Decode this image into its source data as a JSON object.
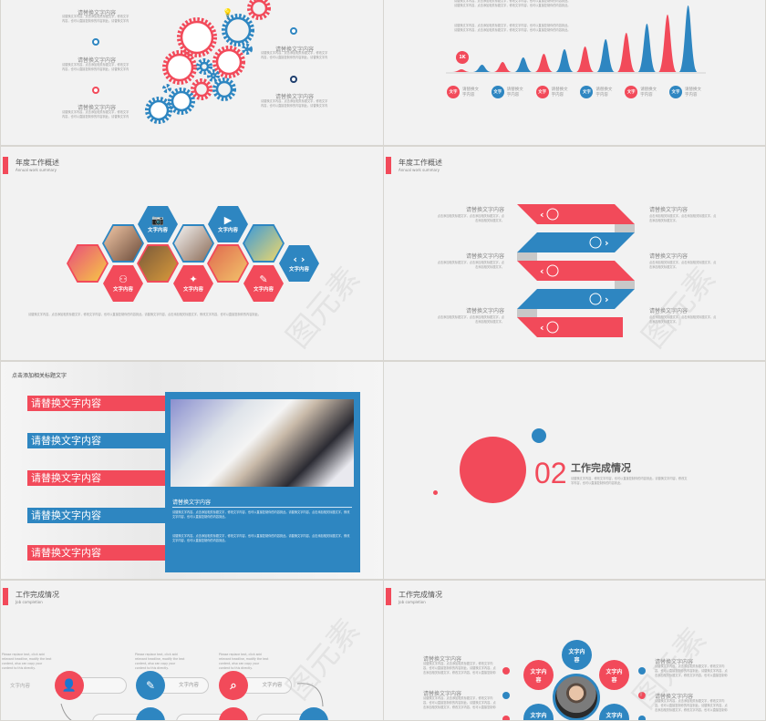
{
  "colors": {
    "red": "#f24a5a",
    "blue": "#2e86c1",
    "navy": "#1f3f6e",
    "bg": "#f2f2f2"
  },
  "common": {
    "replace_text": "请替换文字内容",
    "body_text": "请替换文字内容，点击添加相关标题文字，修改文字内容，也可以直接复制你的内容到此。请替换文字内容，点击添加相关标题文字，修改文字内容，也可以直接复制你的内容到此。",
    "text_content": "文字内容",
    "word": "文字",
    "watermark": "图元素"
  },
  "slide_gears": {
    "labels_left": [
      "请替换文字内容",
      "请替换文字内容",
      "请替换文字内容"
    ],
    "labels_right": [
      "请替换文字内容",
      "请替换文字内容"
    ],
    "icons": [
      "trophy-icon",
      "phone-icon",
      "search-icon",
      "refresh-icon",
      "lightbulb-icon"
    ]
  },
  "slide_peaks": {
    "badge": "1K",
    "legend": [
      {
        "badge": "文字",
        "label": "请替换文字内容",
        "color": "red"
      },
      {
        "badge": "文字",
        "label": "请替换文字内容",
        "color": "blue"
      },
      {
        "badge": "文字",
        "label": "请替换文字内容",
        "color": "red"
      },
      {
        "badge": "文字",
        "label": "请替换文字内容",
        "color": "blue"
      },
      {
        "badge": "文字",
        "label": "请替换文字内容",
        "color": "red"
      },
      {
        "badge": "文字",
        "label": "请替换文字内容",
        "color": "blue"
      }
    ]
  },
  "slide_hex": {
    "title": "年度工作概述",
    "subtitle": "Annual work summary",
    "tiles": [
      "文字内容",
      "文字内容",
      "文字内容",
      "文字内容",
      "文字内容",
      "文字内容"
    ]
  },
  "slide_ribbon": {
    "title": "年度工作概述",
    "subtitle": "Annual work summary",
    "left": [
      "请替换文字内容",
      "请替换文字内容",
      "请替换文字内容"
    ],
    "right": [
      "请替换文字内容",
      "请替换文字内容",
      "请替换文字内容"
    ],
    "desc": "点击添加相关标题文字，点击添加相关标题文字，点击添加相关标题文字。"
  },
  "slide_bars": {
    "title": "点击添加相关标题文字",
    "bars": [
      "请替换文字内容",
      "请替换文字内容",
      "请替换文字内容",
      "请替换文字内容",
      "请替换文字内容"
    ],
    "caption": "请替换文字内容"
  },
  "slide_section": {
    "number": "02",
    "title": "工作完成情况",
    "desc": "请替换文字内容，修改文字内容，也可以直接复制你的内容到此。请替换文字内容，修改文字内容，也可以直接复制你的内容到此。"
  },
  "slide_flow": {
    "title": "工作完成情况",
    "subtitle": "Job completion",
    "english": "Please replace text, click add relevant headline, modify the text content, also can copy your content to this directly.",
    "pills": [
      "文字内容",
      "文字内容",
      "文字内容"
    ]
  },
  "slide_team": {
    "title": "工作完成情况",
    "subtitle": "Job completion",
    "nodes": [
      "文字内容",
      "文字内容",
      "文字内容",
      "文字内容",
      "文字内容"
    ],
    "left": [
      "请替换文字内容",
      "请替换文字内容"
    ],
    "right": [
      "请替换文字内容",
      "请替换文字内容"
    ]
  }
}
